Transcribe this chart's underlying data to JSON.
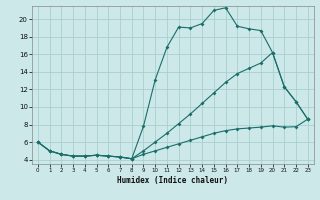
{
  "title": "",
  "xlabel": "Humidex (Indice chaleur)",
  "background_color": "#cce8e8",
  "grid_color": "#aacece",
  "line_color": "#1a6e6a",
  "xlim": [
    -0.5,
    23.5
  ],
  "ylim": [
    3.5,
    21.5
  ],
  "xticks": [
    0,
    1,
    2,
    3,
    4,
    5,
    6,
    7,
    8,
    9,
    10,
    11,
    12,
    13,
    14,
    15,
    16,
    17,
    18,
    19,
    20,
    21,
    22,
    23
  ],
  "yticks": [
    4,
    6,
    8,
    10,
    12,
    14,
    16,
    18,
    20
  ],
  "line1_x": [
    0,
    1,
    2,
    3,
    4,
    5,
    6,
    7,
    8,
    9,
    10,
    11,
    12,
    13,
    14,
    15,
    16,
    17,
    18,
    19,
    20,
    21,
    22,
    23
  ],
  "line1_y": [
    6.0,
    5.0,
    4.6,
    4.4,
    4.4,
    4.5,
    4.4,
    4.3,
    4.1,
    7.8,
    13.1,
    16.8,
    19.1,
    19.0,
    19.5,
    21.0,
    21.3,
    19.2,
    18.9,
    18.7,
    16.2,
    12.3,
    10.6,
    8.6
  ],
  "line2_x": [
    0,
    1,
    2,
    3,
    4,
    5,
    6,
    7,
    8,
    9,
    10,
    11,
    12,
    13,
    14,
    15,
    16,
    17,
    18,
    19,
    20,
    21,
    22,
    23
  ],
  "line2_y": [
    6.0,
    5.0,
    4.6,
    4.4,
    4.4,
    4.5,
    4.4,
    4.3,
    4.1,
    5.0,
    6.0,
    7.0,
    8.1,
    9.2,
    10.4,
    11.6,
    12.8,
    13.8,
    14.4,
    15.0,
    16.2,
    12.3,
    10.6,
    8.6
  ],
  "line3_x": [
    0,
    1,
    2,
    3,
    4,
    5,
    6,
    7,
    8,
    9,
    10,
    11,
    12,
    13,
    14,
    15,
    16,
    17,
    18,
    19,
    20,
    21,
    22,
    23
  ],
  "line3_y": [
    6.0,
    5.0,
    4.6,
    4.4,
    4.4,
    4.5,
    4.4,
    4.3,
    4.1,
    4.6,
    5.0,
    5.4,
    5.8,
    6.2,
    6.6,
    7.0,
    7.3,
    7.5,
    7.6,
    7.7,
    7.85,
    7.7,
    7.75,
    8.6
  ]
}
